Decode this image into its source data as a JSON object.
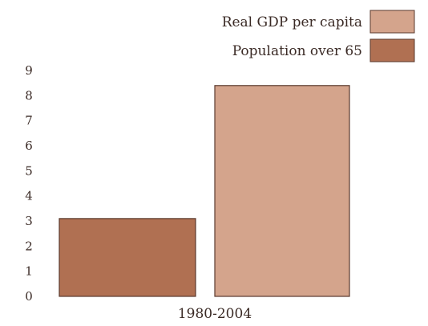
{
  "chart_data": {
    "type": "bar",
    "categories": [
      "1980-2004"
    ],
    "series": [
      {
        "name": "Population over 65",
        "values": [
          3.1
        ],
        "color": "#b07052"
      },
      {
        "name": "Real GDP per capita",
        "values": [
          8.4
        ],
        "color": "#d4a48c"
      }
    ],
    "yticks": [
      "0",
      "1",
      "2",
      "3",
      "4",
      "5",
      "6",
      "7",
      "8",
      "9"
    ],
    "ylim": [
      0,
      9
    ],
    "grid": false,
    "legend_order": [
      "Real GDP per capita",
      "Population over 65"
    ],
    "legend_position": "top-right",
    "title": "",
    "xlabel": "",
    "ylabel": ""
  }
}
